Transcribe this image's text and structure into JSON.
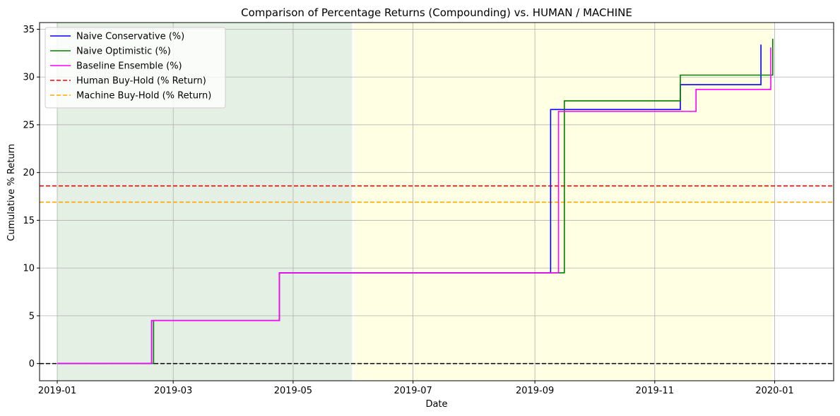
{
  "chart_data": {
    "type": "line",
    "title": "Comparison of Percentage Returns (Compounding) vs. HUMAN / MACHINE",
    "xlabel": "Date",
    "ylabel": "Cumulative % Return",
    "xlim": [
      "2018-12-23",
      "2020-01-31"
    ],
    "ylim": [
      -1.8,
      35.7
    ],
    "x_ticks": [
      "2019-01",
      "2019-03",
      "2019-05",
      "2019-07",
      "2019-09",
      "2019-11",
      "2020-01"
    ],
    "y_ticks": [
      0,
      5,
      10,
      15,
      20,
      25,
      30,
      35
    ],
    "grid": true,
    "legend_position": "top-left",
    "shaded_regions": [
      {
        "start": "2019-01-01",
        "end": "2019-05-31",
        "color": "#e4f0e4"
      },
      {
        "start": "2019-06-01",
        "end": "2019-12-31",
        "color": "#ffffe3"
      }
    ],
    "series": [
      {
        "name": "Naive Conservative (%)",
        "color": "#0000ff",
        "style": "solid",
        "points": [
          [
            "2019-01-01",
            0
          ],
          [
            "2019-02-18",
            0
          ],
          [
            "2019-02-18",
            4.5
          ],
          [
            "2019-04-24",
            4.5
          ],
          [
            "2019-04-24",
            9.5
          ],
          [
            "2019-09-09",
            9.5
          ],
          [
            "2019-09-09",
            26.6
          ],
          [
            "2019-11-14",
            26.6
          ],
          [
            "2019-11-14",
            29.2
          ],
          [
            "2019-12-25",
            29.2
          ],
          [
            "2019-12-25",
            33.4
          ]
        ]
      },
      {
        "name": "Naive Optimistic (%)",
        "color": "#008000",
        "style": "solid",
        "points": [
          [
            "2019-01-01",
            0
          ],
          [
            "2019-02-19",
            0
          ],
          [
            "2019-02-19",
            4.5
          ],
          [
            "2019-04-24",
            4.5
          ],
          [
            "2019-04-24",
            9.5
          ],
          [
            "2019-09-16",
            9.5
          ],
          [
            "2019-09-16",
            27.5
          ],
          [
            "2019-11-14",
            27.5
          ],
          [
            "2019-11-14",
            30.2
          ],
          [
            "2019-12-31",
            30.2
          ],
          [
            "2019-12-31",
            34.0
          ]
        ]
      },
      {
        "name": "Baseline Ensemble (%)",
        "color": "#ff00ff",
        "style": "solid",
        "points": [
          [
            "2019-01-01",
            0
          ],
          [
            "2019-02-18",
            0
          ],
          [
            "2019-02-18",
            4.5
          ],
          [
            "2019-04-24",
            4.5
          ],
          [
            "2019-04-24",
            9.5
          ],
          [
            "2019-09-13",
            9.5
          ],
          [
            "2019-09-13",
            26.4
          ],
          [
            "2019-11-22",
            26.4
          ],
          [
            "2019-11-22",
            28.7
          ],
          [
            "2019-12-30",
            28.7
          ],
          [
            "2019-12-30",
            33.1
          ]
        ]
      }
    ],
    "hlines": [
      {
        "name": "Human Buy-Hold (% Return)",
        "value": 18.6,
        "color": "#ff0000",
        "style": "dashed",
        "legend": true
      },
      {
        "name": "Machine Buy-Hold (% Return)",
        "value": 16.9,
        "color": "#ffa500",
        "style": "dashed",
        "legend": true
      },
      {
        "name": "",
        "value": 0,
        "color": "#000000",
        "style": "dashed",
        "legend": false
      }
    ]
  }
}
